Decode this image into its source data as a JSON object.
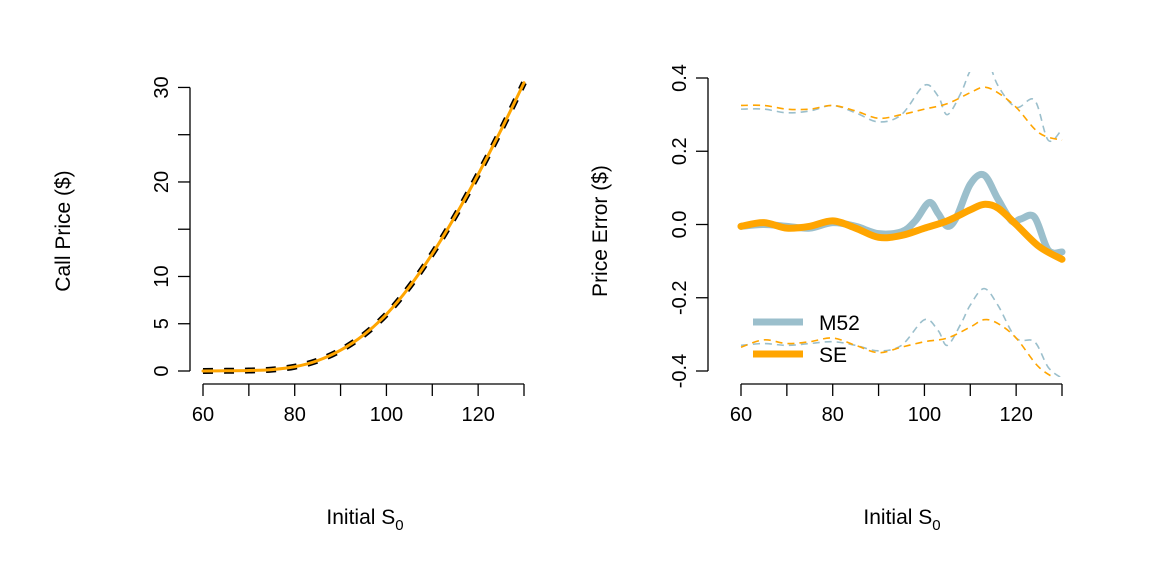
{
  "chart_data": [
    {
      "type": "line",
      "ylabel": "Call Price ($)",
      "xlabel": {
        "main": "Initial S",
        "sub": "0"
      },
      "xlim": [
        60,
        130
      ],
      "ylim": [
        0,
        31
      ],
      "xticks": [
        60,
        80,
        100,
        120
      ],
      "yticks": [
        0,
        5,
        10,
        20,
        30
      ],
      "x_minor_ticks": [
        60,
        70,
        80,
        90,
        100,
        110,
        120,
        130
      ],
      "y_minor_ticks": [
        0,
        5,
        10,
        15,
        20,
        25,
        30
      ],
      "grid": false,
      "series": [
        {
          "color": "#000000",
          "style": "dashed",
          "x": [
            60,
            65,
            70,
            75,
            80,
            85,
            90,
            95,
            100,
            105,
            110,
            115,
            120,
            125,
            130
          ],
          "y": [
            0.0,
            0.02,
            0.05,
            0.15,
            0.45,
            1.1,
            2.2,
            3.8,
            6.0,
            8.9,
            12.4,
            16.4,
            20.8,
            25.5,
            30.5
          ]
        },
        {
          "color": "#FFA500",
          "style": "solid",
          "x": [
            60,
            65,
            70,
            75,
            80,
            85,
            90,
            95,
            100,
            105,
            110,
            115,
            120,
            125,
            130
          ],
          "y": [
            0.0,
            0.02,
            0.05,
            0.15,
            0.45,
            1.1,
            2.2,
            3.8,
            6.0,
            8.9,
            12.4,
            16.4,
            20.8,
            25.5,
            30.5
          ]
        }
      ]
    },
    {
      "type": "line",
      "ylabel": "Price Error ($)",
      "xlabel": {
        "main": "Initial S",
        "sub": "0"
      },
      "xlim": [
        60,
        130
      ],
      "ylim": [
        -0.4,
        0.4
      ],
      "xticks": [
        60,
        80,
        100,
        120
      ],
      "yticks": [
        -0.4,
        -0.2,
        0.0,
        0.2,
        0.4
      ],
      "ytick_labels": [
        "-0.4",
        "-0.2",
        "0.0",
        "0.2",
        "0.4"
      ],
      "x_minor_ticks": [
        60,
        70,
        80,
        90,
        100,
        110,
        120,
        130
      ],
      "grid": false,
      "legend": {
        "position": "bottom-left",
        "entries": [
          {
            "label": "M52",
            "color": "#9BBFCC"
          },
          {
            "label": "SE",
            "color": "#FFA500"
          }
        ]
      },
      "series": [
        {
          "name": "M52",
          "role": "mean",
          "color": "#9BBFCC",
          "x": [
            60,
            65,
            70,
            75,
            80,
            85,
            90,
            95,
            98,
            101,
            103,
            105,
            107,
            110,
            113,
            116,
            119,
            121,
            124,
            127,
            130
          ],
          "y": [
            -0.005,
            0.0,
            -0.005,
            -0.01,
            0.005,
            -0.005,
            -0.025,
            -0.02,
            0.01,
            0.06,
            0.03,
            -0.005,
            0.02,
            0.11,
            0.135,
            0.07,
            0.01,
            0.015,
            0.02,
            -0.07,
            -0.075
          ]
        },
        {
          "name": "SE",
          "role": "mean",
          "color": "#FFA500",
          "x": [
            60,
            65,
            70,
            75,
            80,
            85,
            90,
            95,
            100,
            105,
            110,
            113,
            116,
            120,
            125,
            130
          ],
          "y": [
            -0.005,
            0.005,
            -0.01,
            -0.005,
            0.01,
            -0.01,
            -0.035,
            -0.03,
            -0.01,
            0.01,
            0.04,
            0.055,
            0.045,
            0.0,
            -0.06,
            -0.095
          ]
        },
        {
          "role": "upper band",
          "color": "#9BBFCC",
          "x": [
            60,
            65,
            70,
            75,
            80,
            85,
            90,
            95,
            100,
            103,
            105,
            108,
            110,
            113,
            116,
            120,
            124,
            127,
            130
          ],
          "y": [
            0.315,
            0.315,
            0.305,
            0.31,
            0.325,
            0.305,
            0.28,
            0.3,
            0.38,
            0.35,
            0.3,
            0.36,
            0.42,
            0.47,
            0.38,
            0.32,
            0.34,
            0.23,
            0.26
          ]
        },
        {
          "role": "upper band",
          "color": "#FFA500",
          "x": [
            60,
            65,
            70,
            75,
            80,
            85,
            90,
            95,
            100,
            105,
            110,
            113,
            116,
            120,
            125,
            130
          ],
          "y": [
            0.325,
            0.325,
            0.315,
            0.315,
            0.325,
            0.31,
            0.29,
            0.3,
            0.315,
            0.33,
            0.36,
            0.375,
            0.36,
            0.32,
            0.25,
            0.23
          ]
        },
        {
          "role": "lower band",
          "color": "#9BBFCC",
          "x": [
            60,
            65,
            70,
            75,
            80,
            85,
            90,
            95,
            100,
            103,
            105,
            108,
            110,
            113,
            116,
            120,
            124,
            127,
            130
          ],
          "y": [
            -0.33,
            -0.325,
            -0.33,
            -0.325,
            -0.32,
            -0.33,
            -0.345,
            -0.33,
            -0.26,
            -0.29,
            -0.33,
            -0.27,
            -0.22,
            -0.175,
            -0.22,
            -0.31,
            -0.32,
            -0.39,
            -0.42
          ]
        },
        {
          "role": "lower band",
          "color": "#FFA500",
          "x": [
            60,
            65,
            70,
            75,
            80,
            85,
            90,
            95,
            100,
            105,
            110,
            113,
            116,
            120,
            125,
            130
          ],
          "y": [
            -0.335,
            -0.315,
            -0.325,
            -0.32,
            -0.31,
            -0.33,
            -0.35,
            -0.335,
            -0.32,
            -0.31,
            -0.28,
            -0.26,
            -0.27,
            -0.31,
            -0.39,
            -0.43
          ]
        }
      ]
    }
  ]
}
